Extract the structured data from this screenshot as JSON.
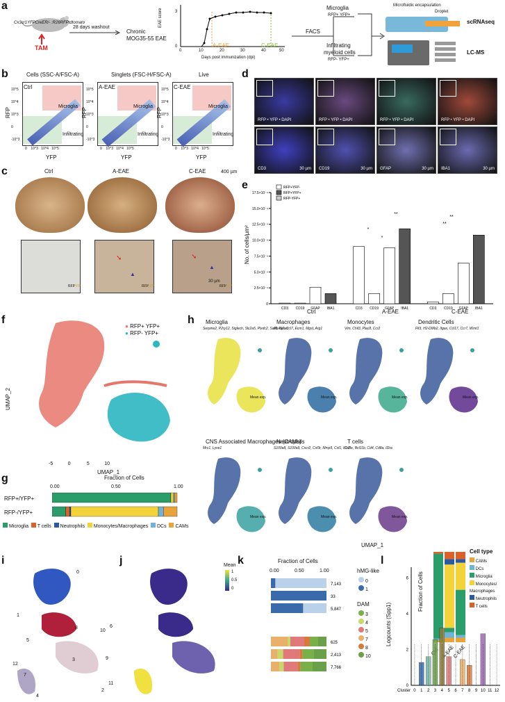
{
  "panel_letters": {
    "a": "a",
    "b": "b",
    "c": "c",
    "d": "d",
    "e": "e",
    "f": "f",
    "g": "g",
    "h": "h",
    "i": "i",
    "j": "j",
    "k": "k",
    "l": "l"
  },
  "a": {
    "mouse_label": "Cx3cr1YFPCreER/- :R26RFPtdtomato",
    "tam": "TAM",
    "washout": "28 days washout",
    "eae_title_1": "Chronic",
    "eae_title_2": "MOG35-55 EAE",
    "ylabel": "EAE score",
    "xlabel": "Days post immunization (dpi)",
    "a_eae": "A-EAE",
    "c_eae": "C-EAE",
    "xticks": [
      "0",
      "10",
      "20",
      "30",
      "40",
      "50"
    ],
    "yticks": [
      "0",
      "1",
      "2",
      "3"
    ],
    "facs": "FACS",
    "microglia": "Microglia",
    "microglia_sub": "RFP+ YFP+",
    "infiltrating": "Infiltrating",
    "infiltrating_2": "myeloid cells",
    "infiltrating_sub": "RFP- YFP+",
    "micro_encap": "Microfluidic encapsulation",
    "droplet": "Droplet",
    "scrnaseq": "scRNAseq",
    "lcms": "LC-MS"
  },
  "b": {
    "gating": [
      "Cells (SSC-A/FSC-A)",
      "Singlets (FSC-H/FSC-A)",
      "Live"
    ],
    "plots": [
      "Ctrl",
      "A-EAE",
      "C-EAE"
    ],
    "microglia": "Microglia",
    "infiltrating": "Infiltrating",
    "xlabel": "YFP",
    "ylabel": "RFP",
    "yticks": [
      "10^5",
      "10^4",
      "10^3",
      "0",
      "-10^3"
    ],
    "xticks": [
      "0",
      "10^3",
      "10^4",
      "10^5"
    ]
  },
  "c": {
    "titles": [
      "Ctrl",
      "A-EAE",
      "C-EAE"
    ],
    "scale": "400 µm",
    "scale2": "30 µm",
    "rfp": "RFP",
    "yfp": "YFP"
  },
  "d": {
    "top_caps": [
      "RFP • YFP • DAPI",
      "RFP • YFP • DAPI",
      "RFP • YFP • DAPI",
      "RFP • YFP • DAPI"
    ],
    "bottom_caps": [
      "CD3",
      "CD19",
      "GFAP",
      "IBA1"
    ],
    "scale": "30 µm"
  },
  "e": {
    "legend": [
      "RFP+YFP-",
      "RFP+YFP+",
      "RFP-YFP+"
    ],
    "ylabel": "No. of cells/µm²",
    "yticks": [
      "0",
      "2.5×10⁻⁴",
      "5.0×10⁻⁴",
      "7.5×10⁻⁴",
      "10.0×10⁻⁴",
      "12.5×10⁻⁴",
      "15.0×10⁻⁴",
      "17.5×10⁻⁴"
    ],
    "groups": [
      "Ctrl",
      "A-EAE",
      "C-EAE"
    ],
    "markers": [
      "CD3",
      "CD19",
      "GFAP",
      "IBA1"
    ],
    "sig": [
      "*",
      "*",
      "**",
      "**",
      "**"
    ]
  },
  "chart_data": [
    {
      "type": "bar",
      "title": "",
      "ylabel": "No. of cells/µm²",
      "ylim": [
        0,
        0.00175
      ],
      "groups": [
        "Ctrl",
        "A-EAE",
        "C-EAE"
      ],
      "categories": [
        "CD3",
        "CD19",
        "GFAP",
        "IBA1"
      ],
      "series": [
        {
          "name": "Ctrl",
          "values": [
            1e-05,
            1e-05,
            0.00026,
            0.00016
          ]
        },
        {
          "name": "A-EAE",
          "values": [
            0.0009,
            0.00016,
            0.00088,
            0.00118
          ]
        },
        {
          "name": "C-EAE",
          "values": [
            3e-05,
            0.00016,
            0.00064,
            0.00108
          ]
        }
      ]
    },
    {
      "type": "bar",
      "title": "Fraction of Cells",
      "categories": [
        "RFP+/YFP+",
        "RFP-/YFP+"
      ],
      "xlim": [
        0,
        1
      ],
      "xticks": [
        "0.00",
        "0.50",
        "1.00"
      ],
      "series": [
        {
          "name": "Microglia",
          "values": [
            0.95,
            0.11
          ]
        },
        {
          "name": "T cells",
          "values": [
            0.0,
            0.03
          ]
        },
        {
          "name": "Neutrophils",
          "values": [
            0.0,
            0.01
          ]
        },
        {
          "name": "Monocytes/Macrophages",
          "values": [
            0.02,
            0.7
          ]
        },
        {
          "name": "DCs",
          "values": [
            0.01,
            0.04
          ]
        },
        {
          "name": "CAMs",
          "values": [
            0.02,
            0.11
          ]
        }
      ]
    },
    {
      "type": "bar",
      "title": "Fraction of Cells",
      "categories": [
        "Ctrl",
        "A-EAE",
        "C-EAE"
      ],
      "series": [
        {
          "name": "0",
          "values": [
            0.08,
            1.0,
            0.58
          ]
        },
        {
          "name": "1",
          "values": [
            0.92,
            0.0,
            0.42
          ]
        }
      ],
      "counts": [
        "7,143",
        "33",
        "5,847"
      ]
    },
    {
      "type": "bar",
      "categories": [
        "Ctrl",
        "A-EAE",
        "C-EAE"
      ],
      "series": [
        {
          "name": "3",
          "values": [
            0.3,
            0.12,
            0.15
          ]
        },
        {
          "name": "4",
          "values": [
            0.05,
            0.1,
            0.08
          ]
        },
        {
          "name": "5",
          "values": [
            0.25,
            0.3,
            0.25
          ]
        },
        {
          "name": "7",
          "values": [
            0.1,
            0.05,
            0.05
          ]
        },
        {
          "name": "8",
          "values": [
            0.15,
            0.2,
            0.22
          ]
        },
        {
          "name": "10",
          "values": [
            0.15,
            0.23,
            0.25
          ]
        }
      ],
      "counts": [
        "625",
        "2,413",
        "7,766"
      ]
    },
    {
      "type": "box",
      "ylabel": "Logcounts (Spp1)",
      "categories": [
        "0",
        "1",
        "2",
        "3",
        "4",
        "5",
        "6",
        "7",
        "8",
        "9",
        "10",
        "11",
        "12"
      ],
      "medians": [
        0.0,
        0.8,
        1.0,
        1.6,
        2.0,
        1.0,
        0.0,
        0.9,
        0.7,
        0.0,
        1.8,
        0.0,
        0.0
      ]
    }
  ],
  "f": {
    "legend": [
      "RFP+ YFP+",
      "RFP- YFP+"
    ],
    "xlabel": "UMAP_1",
    "ylabel": "UMAP_2",
    "xticks": [
      "-5",
      "0",
      "5",
      "10"
    ],
    "yticks": [
      "10",
      "5",
      "0",
      "-5",
      "-10"
    ]
  },
  "g": {
    "title": "Fraction of Cells",
    "xticks": [
      "0.00",
      "0.50",
      "1.00"
    ],
    "rows": [
      "RFP+/YFP+",
      "RFP-/YFP+"
    ],
    "legend": [
      "Microglia",
      "T cells",
      "Neutrophils",
      "Monocytes/Macrophages",
      "DCs",
      "CAMs"
    ]
  },
  "h": {
    "panels": [
      {
        "title": "Microglia",
        "genes": "Serpine2, P2ry12, Siglech, Slc2a5, Plxdc2, Sall1, Sparc"
      },
      {
        "title": "Macrophages",
        "genes": "Ms4a7, Ccl7, Ecm1, Mgst, Arg1"
      },
      {
        "title": "Monocytes",
        "genes": "Vim, Chil3, Plac8, Ccr2"
      },
      {
        "title": "Dendritic Cells",
        "genes": "Flt3, H2-DMb2, Itgax, Ccl17, Ccr7, Il6mt1"
      },
      {
        "title": "CNS Associated Macrophages (CAMs)",
        "genes": "Mrc1, Lyve1"
      },
      {
        "title": "Neutrophils",
        "genes": "S100a8, S100a9, Cxcr2, Csf3r, Mmp9, Csf1, Il1r2"
      },
      {
        "title": "T cells",
        "genes": "Cd3e, Bcl11b, Cd4, Cd8a, Il2ra"
      }
    ],
    "mean_exp": "Mean exp.",
    "xlabel": "UMAP_1",
    "ylabel": "UMAP_2",
    "cell_type": "Cell type",
    "ct_legend": [
      "CAMs",
      "DCs",
      "Microglia",
      "Monocytes/ Macrophages",
      "Neutrophils",
      "T cells"
    ],
    "frac": "Fraction of Cells",
    "frac_x": [
      "Ctrl",
      "A-EAE",
      "C-EAE"
    ],
    "frac_y": [
      "0.00",
      "0.25",
      "0.50",
      "0.75",
      "1.00"
    ]
  },
  "ij": {
    "mean": "Mean",
    "cbar": [
      "1",
      "0.5",
      "0"
    ],
    "clusters": [
      "0",
      "1",
      "2",
      "3",
      "4",
      "5",
      "6",
      "7",
      "8",
      "9",
      "10",
      "11",
      "12"
    ]
  },
  "k": {
    "title": "Fraction of Cells",
    "xticks": [
      "0.00",
      "0.50",
      "1.00"
    ],
    "rows": [
      "Ctrl",
      "A-EAE",
      "C-EAE"
    ],
    "hmg": "hMG-like",
    "hmg_items": [
      "0",
      "1"
    ],
    "dam": "DAM",
    "dam_items": [
      "3",
      "4",
      "5",
      "7",
      "8",
      "10"
    ]
  },
  "l": {
    "ylabel": "Logcounts (Spp1)",
    "cluster": "Cluster",
    "yticks": [
      "0",
      "2",
      "4",
      "6"
    ]
  },
  "colors": {
    "microglia": "#2a9d6a",
    "tcells": "#d9622b",
    "neutrophils": "#2c5aa0",
    "mono": "#f2d43a",
    "dcs": "#6fb3d9",
    "cams": "#e8a33a",
    "rfp_pos": "#e8756a",
    "rfp_neg": "#2bb6c0",
    "eae_orange": "#f0a040",
    "eae_green": "#8cc63f"
  }
}
